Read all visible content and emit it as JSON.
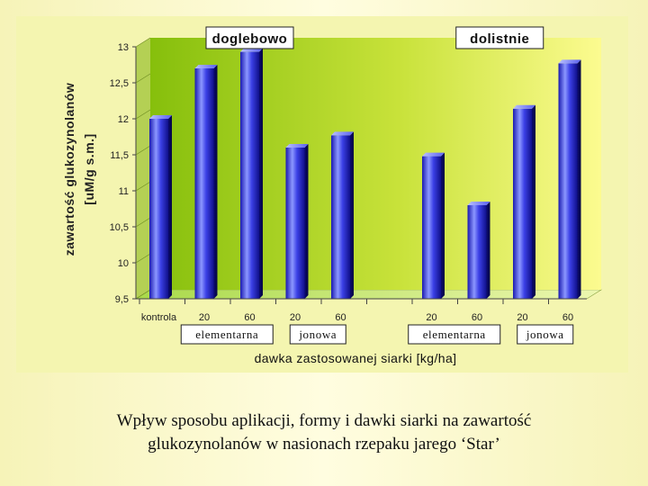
{
  "caption": {
    "line1": "Wpływ sposobu aplikacji, formy i dawki siarki na zawartość",
    "line2": "glukozynolanów w nasionach rzepaku jarego ‘Star’"
  },
  "colors": {
    "slide_background": "#fdfbd2",
    "chart_area": "#f4f5b0",
    "plot_left": "#8fc411",
    "plot_right": "#fbfb8c",
    "bar_light": "#9aa6ff",
    "bar_mid": "#3035e0",
    "bar_dark": "#0a0a78"
  },
  "chart_data": {
    "type": "bar",
    "style": "3d-cylinder",
    "title": "",
    "ylabel_line1": "zawartość glukozynolanów",
    "ylabel_line2": "[uM/g s.m.]",
    "xlabel": "dawka zastosowanej siarki [kg/ha]",
    "ylim": [
      9.5,
      13
    ],
    "yticks": [
      "9,5",
      "10",
      "10,5",
      "11",
      "11,5",
      "12",
      "12,5",
      "13"
    ],
    "grid": false,
    "legend": "none",
    "group_labels": [
      {
        "text": "doglebowo",
        "from": 0,
        "to": 4
      },
      {
        "text": "dolistnie",
        "from": 5,
        "to": 8
      }
    ],
    "form_labels": [
      {
        "text": "elementarna",
        "from": 1,
        "to": 2
      },
      {
        "text": "jonowa",
        "from": 3,
        "to": 4
      },
      {
        "text": "elementarna",
        "from": 5,
        "to": 6
      },
      {
        "text": "jonowa",
        "from": 7,
        "to": 8
      }
    ],
    "categories": [
      "kontrola",
      "20",
      "60",
      "20",
      "60",
      "20",
      "60",
      "20",
      "60"
    ],
    "values": [
      12.0,
      12.7,
      12.93,
      11.6,
      11.77,
      11.48,
      10.8,
      12.14,
      12.77
    ]
  }
}
